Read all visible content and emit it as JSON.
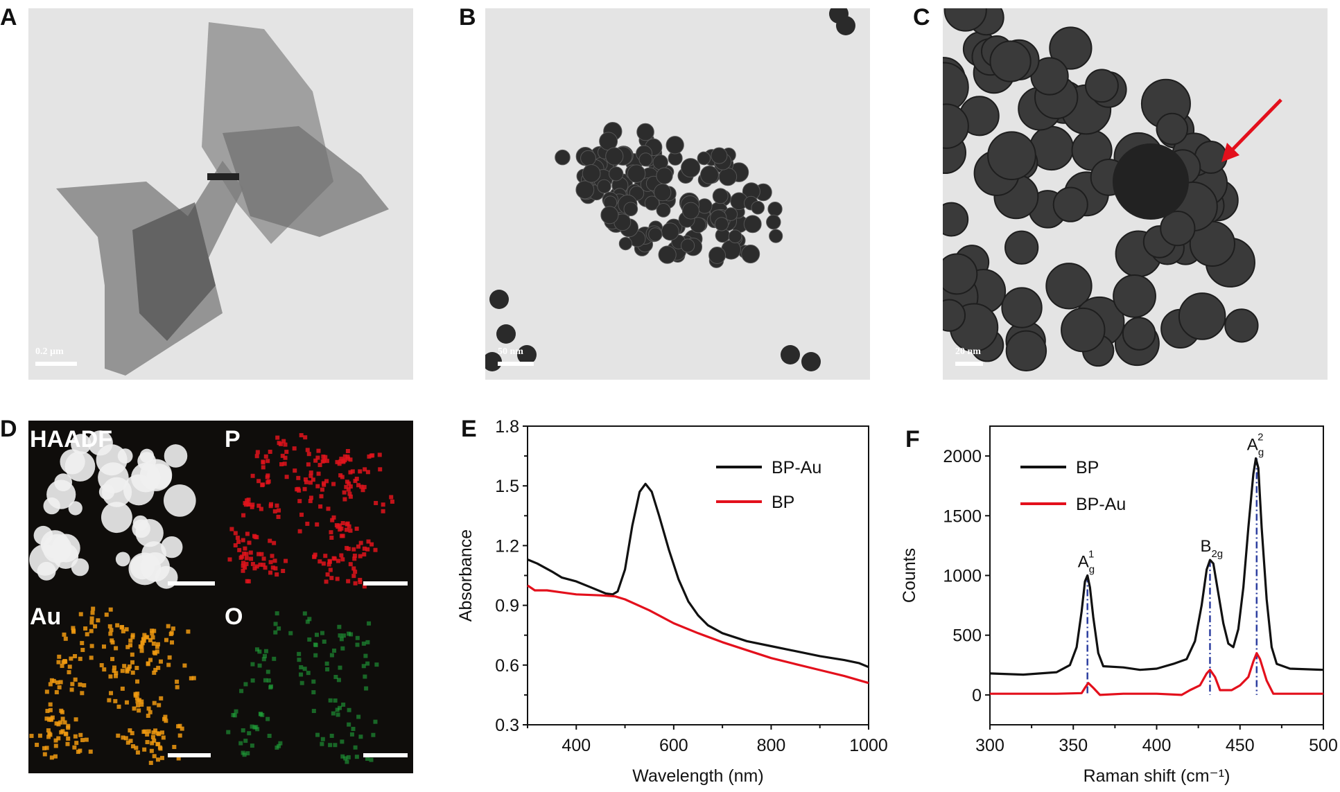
{
  "panels": {
    "A": {
      "label": "A",
      "scale_bar": "0.2 µm"
    },
    "B": {
      "label": "B",
      "scale_bar": "50 nm"
    },
    "C": {
      "label": "C",
      "scale_bar": "20 nm",
      "arrow_color": "#e3101c"
    },
    "D": {
      "label": "D",
      "maps": [
        {
          "name": "HAADF",
          "color": "#f0f0f0"
        },
        {
          "name": "P",
          "color": "#e0141c"
        },
        {
          "name": "Au",
          "color": "#f09a10"
        },
        {
          "name": "O",
          "color": "#1fa33a"
        }
      ]
    },
    "E": {
      "label": "E"
    },
    "F": {
      "label": "F"
    }
  },
  "chart_data": [
    {
      "type": "line",
      "panel": "E",
      "xlabel": "Wavelength (nm)",
      "ylabel": "Absorbance",
      "xlim": [
        300,
        1000
      ],
      "ylim": [
        0.3,
        1.8
      ],
      "xticks": [
        400,
        600,
        800,
        1000
      ],
      "yticks": [
        0.3,
        0.6,
        0.9,
        1.2,
        1.5,
        1.8
      ],
      "grid": false,
      "legend_position": "top-right",
      "series": [
        {
          "name": "BP-Au",
          "color": "#111111",
          "x": [
            300,
            320,
            350,
            370,
            400,
            430,
            460,
            475,
            485,
            500,
            515,
            530,
            542,
            555,
            570,
            590,
            610,
            630,
            650,
            670,
            700,
            750,
            800,
            850,
            900,
            950,
            980,
            1000
          ],
          "y": [
            1.13,
            1.11,
            1.07,
            1.04,
            1.02,
            0.99,
            0.96,
            0.955,
            0.97,
            1.08,
            1.3,
            1.47,
            1.51,
            1.47,
            1.35,
            1.18,
            1.03,
            0.92,
            0.85,
            0.8,
            0.76,
            0.72,
            0.695,
            0.67,
            0.645,
            0.625,
            0.61,
            0.59
          ]
        },
        {
          "name": "BP",
          "color": "#e3101c",
          "x": [
            300,
            315,
            340,
            370,
            400,
            450,
            480,
            500,
            550,
            600,
            650,
            700,
            750,
            800,
            850,
            900,
            950,
            1000
          ],
          "y": [
            1.0,
            0.975,
            0.975,
            0.965,
            0.955,
            0.95,
            0.945,
            0.93,
            0.875,
            0.81,
            0.76,
            0.715,
            0.675,
            0.635,
            0.605,
            0.575,
            0.545,
            0.51
          ]
        }
      ]
    },
    {
      "type": "line",
      "panel": "F",
      "xlabel": "Raman shift (cm⁻¹)",
      "ylabel": "Counts",
      "xlim": [
        300,
        500
      ],
      "ylim": [
        -250,
        2250
      ],
      "xticks": [
        300,
        350,
        400,
        450,
        500
      ],
      "yticks": [
        0,
        500,
        1000,
        1500,
        2000
      ],
      "grid": false,
      "legend_position": "top-left",
      "series": [
        {
          "name": "BP",
          "color": "#111111",
          "x": [
            300,
            320,
            340,
            348,
            352,
            355,
            357,
            358.5,
            360,
            362,
            365,
            368,
            380,
            390,
            400,
            410,
            418,
            423,
            427,
            430,
            432,
            434,
            437,
            440,
            443,
            446,
            449,
            452,
            455,
            458,
            459.5,
            461,
            463,
            466,
            469,
            472,
            480,
            500
          ],
          "y": [
            180,
            170,
            190,
            250,
            400,
            700,
            950,
            1000,
            900,
            650,
            350,
            240,
            230,
            210,
            220,
            260,
            300,
            450,
            750,
            1050,
            1130,
            1100,
            850,
            600,
            430,
            400,
            550,
            900,
            1400,
            1850,
            1980,
            1900,
            1400,
            800,
            400,
            260,
            220,
            210
          ]
        },
        {
          "name": "BP-Au",
          "color": "#e3101c",
          "x": [
            300,
            340,
            355,
            357,
            359,
            362,
            366,
            380,
            400,
            415,
            420,
            426,
            430,
            432,
            435,
            438,
            445,
            450,
            455,
            458,
            460,
            462,
            466,
            470,
            480,
            500
          ],
          "y": [
            10,
            10,
            15,
            60,
            100,
            60,
            0,
            10,
            10,
            0,
            40,
            80,
            180,
            210,
            150,
            40,
            40,
            80,
            150,
            280,
            350,
            300,
            120,
            10,
            10,
            10
          ]
        }
      ],
      "peak_annotations": [
        {
          "label": "A",
          "sub": "g",
          "sup": "1",
          "x": 358.5,
          "y": 1000
        },
        {
          "label": "B",
          "sub": "2g",
          "sup": "",
          "x": 432,
          "y": 1130
        },
        {
          "label": "A",
          "sub": "g",
          "sup": "2",
          "x": 460,
          "y": 1980
        }
      ],
      "peak_line_color": "#2d3fa0"
    }
  ]
}
